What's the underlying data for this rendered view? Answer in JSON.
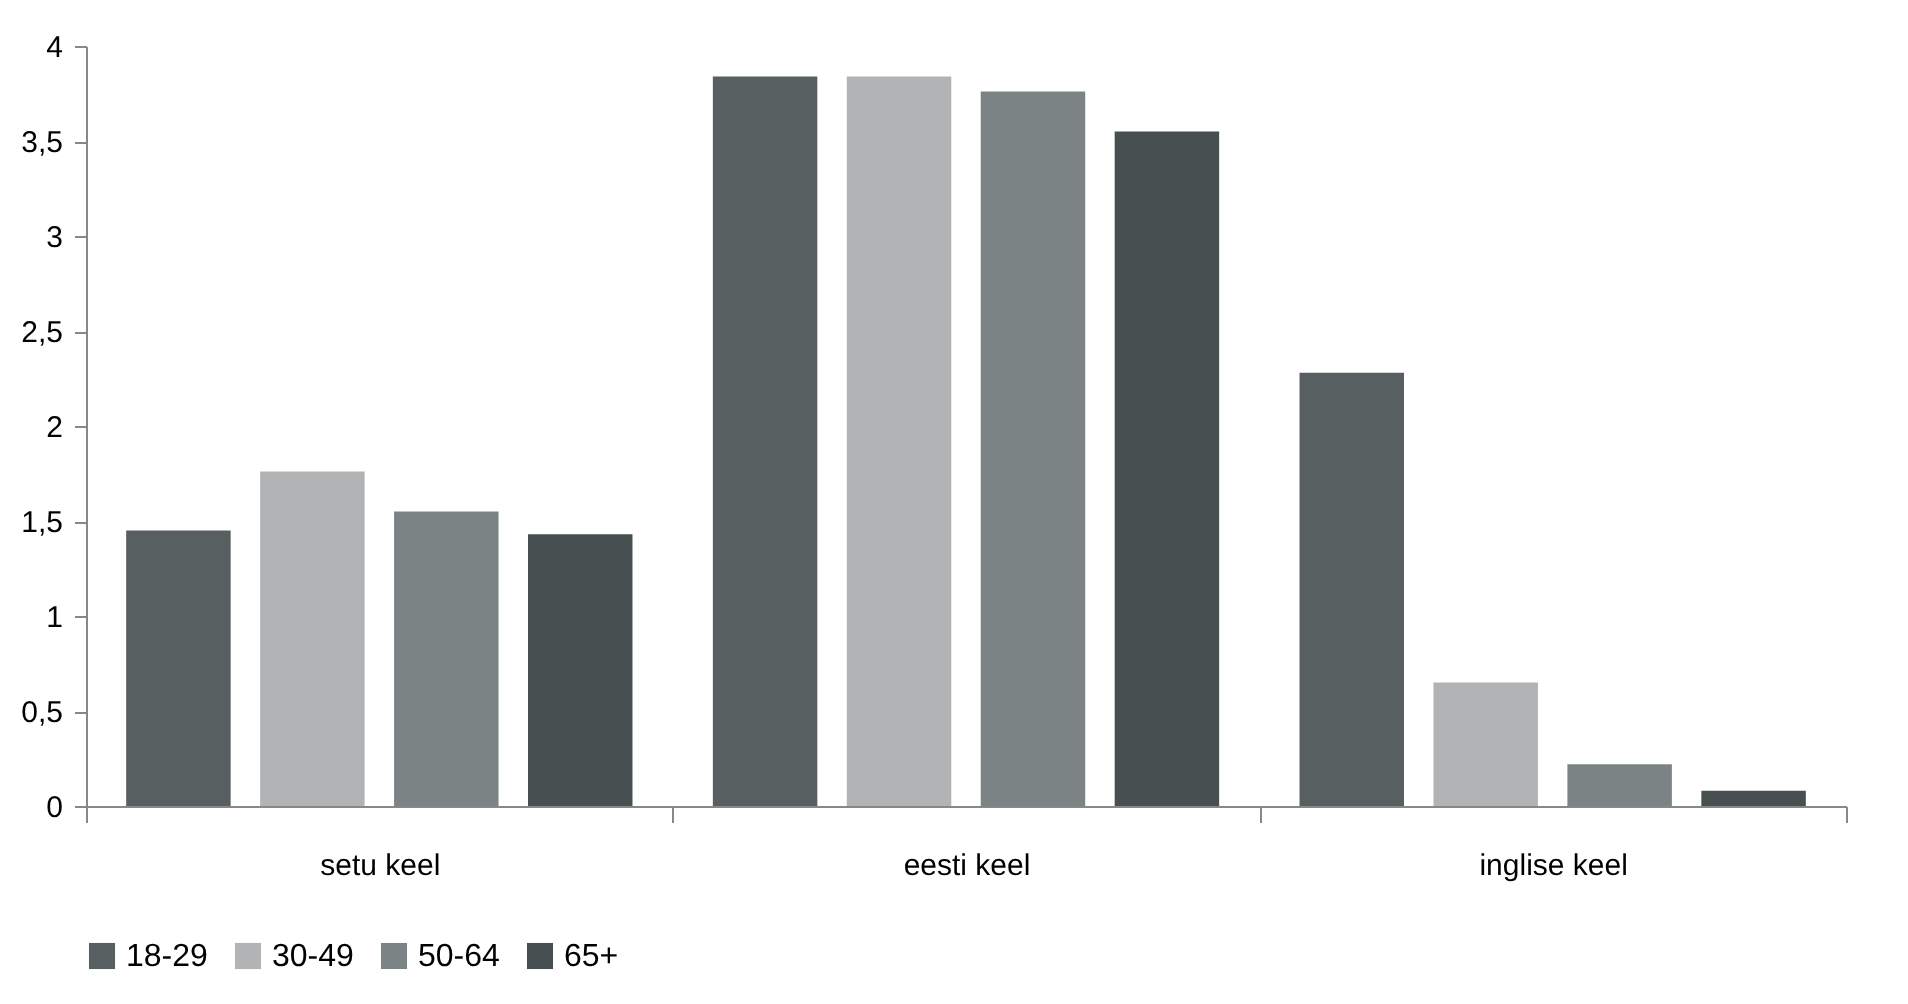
{
  "chart_data": {
    "type": "bar",
    "categories": [
      "setu keel",
      "eesti keel",
      "inglise keel"
    ],
    "series": [
      {
        "name": "18-29",
        "color": "#575f60",
        "values": [
          1.45,
          3.84,
          2.28
        ]
      },
      {
        "name": "30-49",
        "color": "#b2b3b5",
        "values": [
          1.76,
          3.84,
          0.65
        ]
      },
      {
        "name": "50-64",
        "color": "#7b8385",
        "values": [
          1.55,
          3.76,
          0.22
        ]
      },
      {
        "name": "65+",
        "color": "#474f51",
        "values": [
          1.43,
          3.55,
          0.08
        ]
      }
    ],
    "ylim": [
      0,
      4
    ],
    "yticks": [
      0,
      {
        "value": 0.5,
        "label": "0,5"
      },
      1,
      {
        "value": 1.5,
        "label": "1,5"
      },
      2,
      {
        "value": 2.5,
        "label": "2,5"
      },
      3,
      {
        "value": 3.5,
        "label": "3,5"
      },
      4
    ],
    "grid": false,
    "legend": "bottom"
  }
}
